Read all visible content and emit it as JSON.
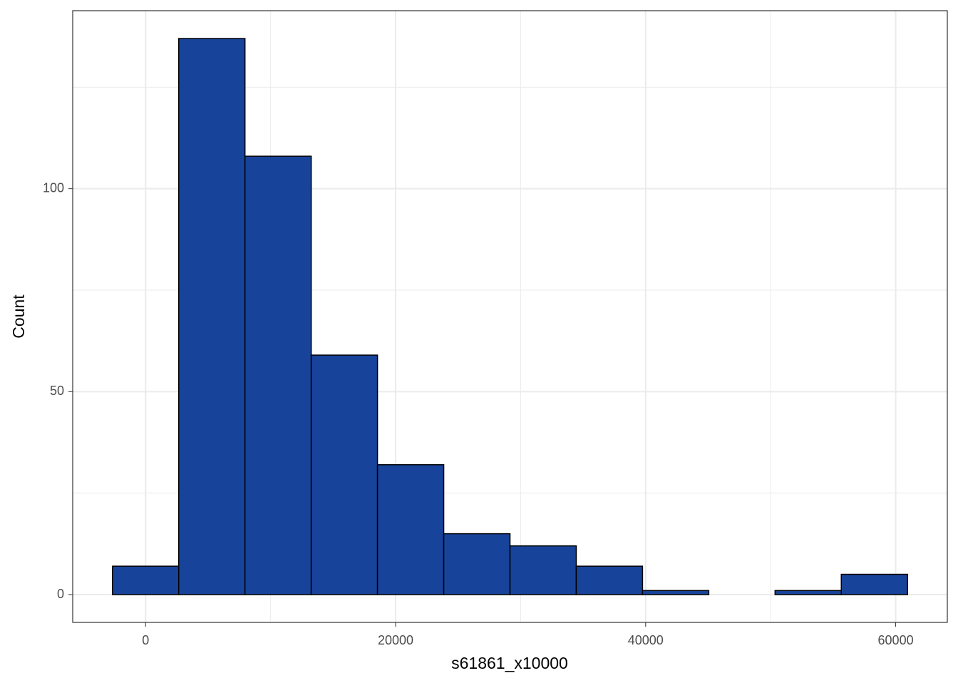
{
  "chart_data": {
    "type": "histogram",
    "x_label": "s61861_x10000",
    "y_label": "Count",
    "bins": [
      -2650,
      2650,
      7950,
      13250,
      18550,
      23850,
      29150,
      34450,
      39750,
      45050,
      50350,
      55650,
      60950
    ],
    "values": [
      7,
      137,
      108,
      59,
      32,
      15,
      12,
      7,
      1,
      0,
      1,
      5
    ],
    "color": "#18439a",
    "xlim": [
      -5830,
      64130
    ],
    "xticks": [
      0,
      20000,
      40000,
      60000
    ],
    "xminor": [
      10000,
      30000,
      50000
    ],
    "ylim": [
      -6.85,
      143.85
    ],
    "yticks": [
      0,
      50,
      100
    ],
    "yminor": [
      25,
      75,
      125
    ],
    "grid": true
  }
}
